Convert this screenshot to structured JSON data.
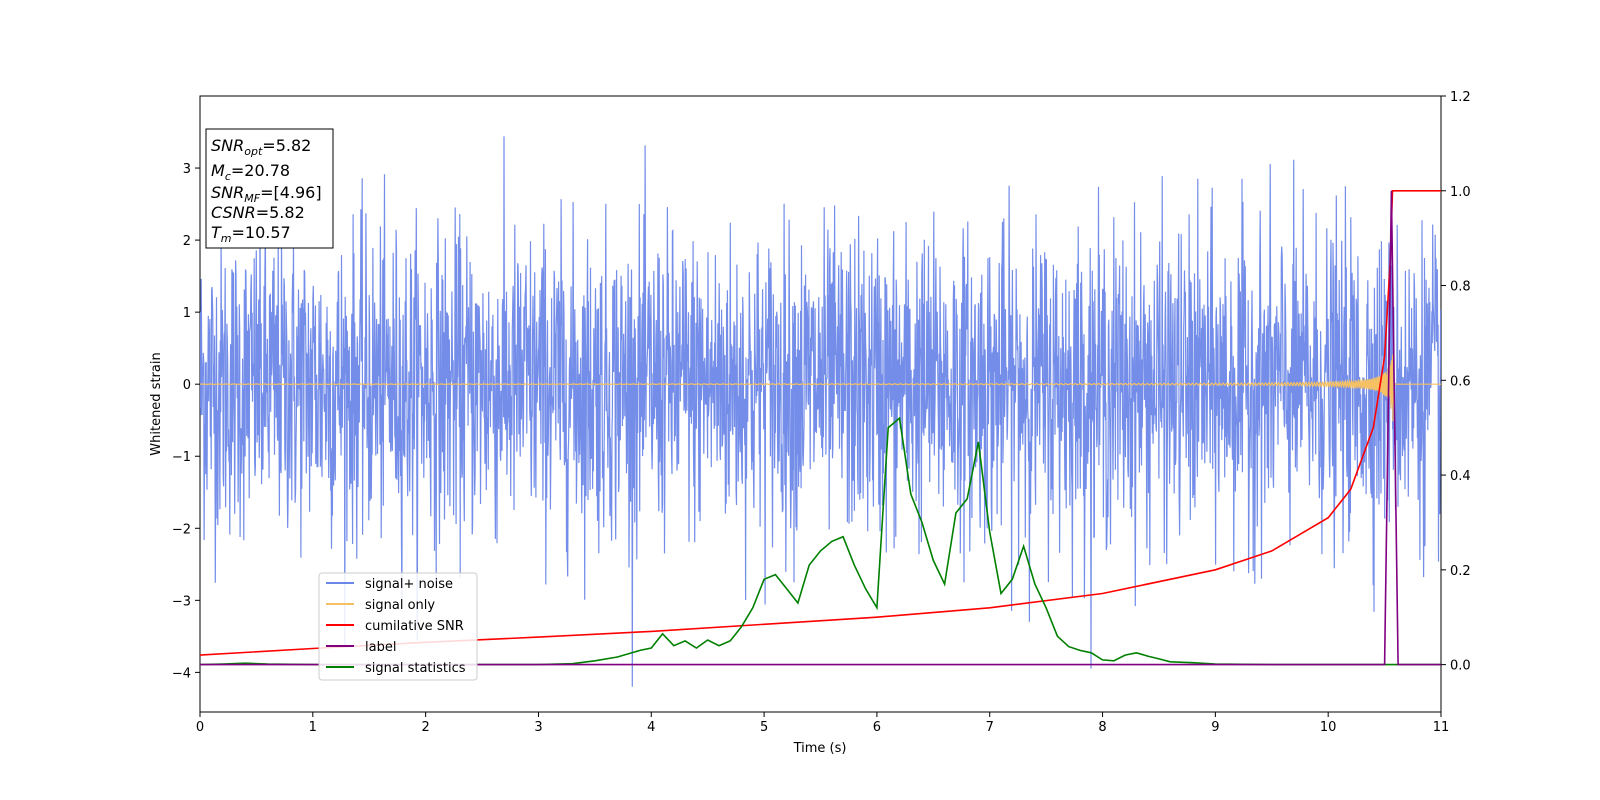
{
  "chart_data": {
    "type": "line",
    "xlabel": "Time (s)",
    "ylabel": "Whitened strain",
    "xlim": [
      0,
      11
    ],
    "ylim_left": [
      -4.55,
      4.0
    ],
    "ylim_right": [
      -0.1,
      1.2
    ],
    "x_ticks": [
      "0",
      "1",
      "2",
      "3",
      "4",
      "5",
      "6",
      "7",
      "8",
      "9",
      "10",
      "11"
    ],
    "y_left_ticks": [
      "3",
      "2",
      "1",
      "0",
      "−1",
      "−2",
      "−3",
      "−4"
    ],
    "y_right_ticks": [
      "1.2",
      "1.0",
      "0.8",
      "0.6",
      "0.4",
      "0.2",
      "0.0"
    ],
    "grid": false,
    "legend_position": "lower-left",
    "info_box": {
      "snr_opt": {
        "sym": "SNR",
        "sub": "opt",
        "val": "=5.82"
      },
      "mc": {
        "sym": "M",
        "sub": "c",
        "val": "=20.78"
      },
      "snr_mf": {
        "sym": "SNR",
        "sub": "MF",
        "val": "=[4.96]"
      },
      "csnr": {
        "sym": "CSNR",
        "sub": "",
        "val": "=5.82"
      },
      "tm": {
        "sym": "T",
        "sub": "m",
        "val": "=10.57"
      }
    },
    "series": [
      {
        "name": "signal+ noise",
        "axis": "left",
        "color": "#6b87e8",
        "note_shape": "dense noise"
      },
      {
        "name": "signal only",
        "axis": "left",
        "color": "#f5c163"
      },
      {
        "name": "cumilative SNR",
        "axis": "right",
        "color": "#ff0000",
        "x": [
          0,
          1,
          2,
          3,
          4,
          5,
          6,
          7,
          8,
          9,
          9.5,
          10,
          10.2,
          10.4,
          10.5,
          10.55,
          10.57,
          11
        ],
        "y": [
          0.02,
          0.034,
          0.047,
          0.058,
          0.07,
          0.085,
          0.1,
          0.12,
          0.15,
          0.2,
          0.24,
          0.31,
          0.37,
          0.5,
          0.65,
          0.85,
          1.0,
          1.0
        ]
      },
      {
        "name": "label",
        "axis": "right",
        "color": "#800080",
        "x": [
          0,
          10.5,
          10.56,
          10.62,
          11
        ],
        "y": [
          0,
          0,
          1.0,
          0,
          0
        ]
      },
      {
        "name": "signal statistics",
        "axis": "right",
        "color": "#008000",
        "x": [
          0,
          0.2,
          0.4,
          0.6,
          1,
          2,
          3,
          3.3,
          3.5,
          3.7,
          3.9,
          4.0,
          4.1,
          4.2,
          4.3,
          4.4,
          4.5,
          4.6,
          4.7,
          4.8,
          4.9,
          5.0,
          5.1,
          5.2,
          5.3,
          5.4,
          5.5,
          5.6,
          5.7,
          5.8,
          5.9,
          6.0,
          6.1,
          6.2,
          6.3,
          6.4,
          6.5,
          6.6,
          6.7,
          6.8,
          6.9,
          7.0,
          7.1,
          7.2,
          7.3,
          7.4,
          7.5,
          7.6,
          7.7,
          7.8,
          7.9,
          8.0,
          8.1,
          8.2,
          8.3,
          8.4,
          8.5,
          8.6,
          8.8,
          9.0,
          9.5,
          11
        ],
        "y": [
          0,
          0.001,
          0.003,
          0.001,
          0,
          0,
          0,
          0.002,
          0.008,
          0.016,
          0.03,
          0.035,
          0.065,
          0.04,
          0.05,
          0.035,
          0.052,
          0.04,
          0.05,
          0.08,
          0.12,
          0.18,
          0.19,
          0.16,
          0.13,
          0.21,
          0.24,
          0.26,
          0.27,
          0.21,
          0.16,
          0.12,
          0.5,
          0.52,
          0.36,
          0.3,
          0.22,
          0.17,
          0.32,
          0.35,
          0.47,
          0.28,
          0.15,
          0.18,
          0.25,
          0.17,
          0.12,
          0.06,
          0.038,
          0.03,
          0.025,
          0.01,
          0.008,
          0.02,
          0.025,
          0.018,
          0.012,
          0.006,
          0.004,
          0.001,
          0,
          0
        ]
      }
    ]
  }
}
